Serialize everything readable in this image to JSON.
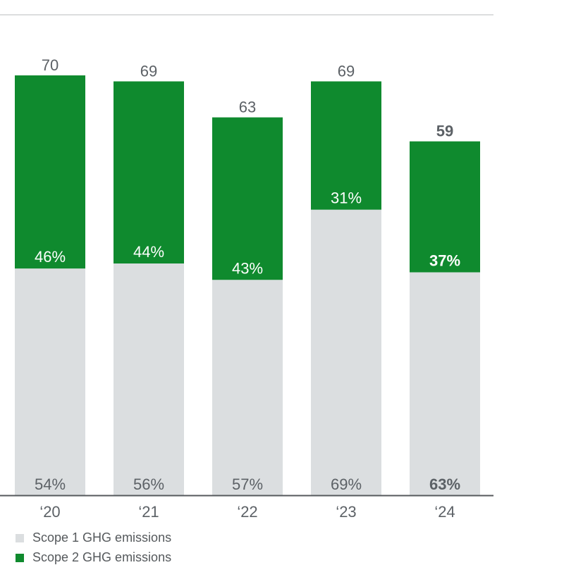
{
  "chart_data": {
    "type": "bar",
    "stacked": true,
    "title": "",
    "xlabel": "",
    "ylabel": "",
    "categories": [
      "‘20",
      "‘21",
      "‘22",
      "‘23",
      "‘24"
    ],
    "totals": [
      70,
      69,
      63,
      69,
      59
    ],
    "total_labels": [
      "70",
      "69",
      "63",
      "69",
      "59"
    ],
    "ylim": [
      0,
      70
    ],
    "grid": false,
    "legend_position": "bottom-left",
    "highlight_last": true,
    "series": [
      {
        "name": "Scope 1 GHG emissions",
        "color": "#dbdee0",
        "share_percent": [
          54,
          56,
          57,
          69,
          63
        ],
        "labels": [
          "54%",
          "56%",
          "57%",
          "69%",
          "63%"
        ]
      },
      {
        "name": "Scope 2 GHG emissions",
        "color": "#0f8a2e",
        "share_percent": [
          46,
          44,
          43,
          31,
          37
        ],
        "labels": [
          "46%",
          "44%",
          "43%",
          "31%",
          "37%"
        ]
      }
    ]
  },
  "colors": {
    "axis": "#55595c",
    "top_rule": "#b8bbbe",
    "label_gray": "#5c6166",
    "label_white": "#ffffff"
  }
}
